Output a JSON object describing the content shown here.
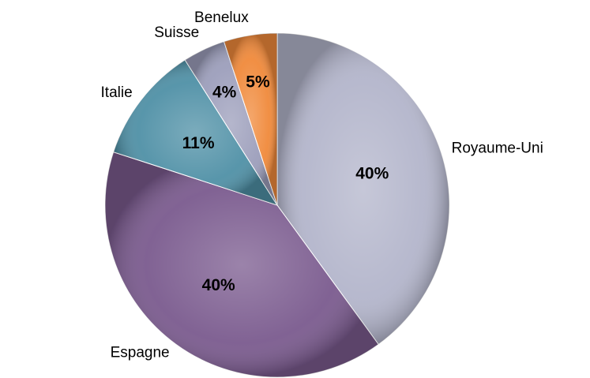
{
  "chart_data": {
    "type": "pie",
    "categories": [
      "Royaume-Uni",
      "Espagne",
      "Italie",
      "Suisse",
      "Benelux"
    ],
    "values": [
      40,
      40,
      11,
      4,
      5
    ],
    "value_labels": [
      "40%",
      "40%",
      "11%",
      "4%",
      "5%"
    ],
    "colors": [
      "#b3b5cb",
      "#7a5a8e",
      "#4f90a6",
      "#9c9ebb",
      "#f0893a"
    ]
  }
}
